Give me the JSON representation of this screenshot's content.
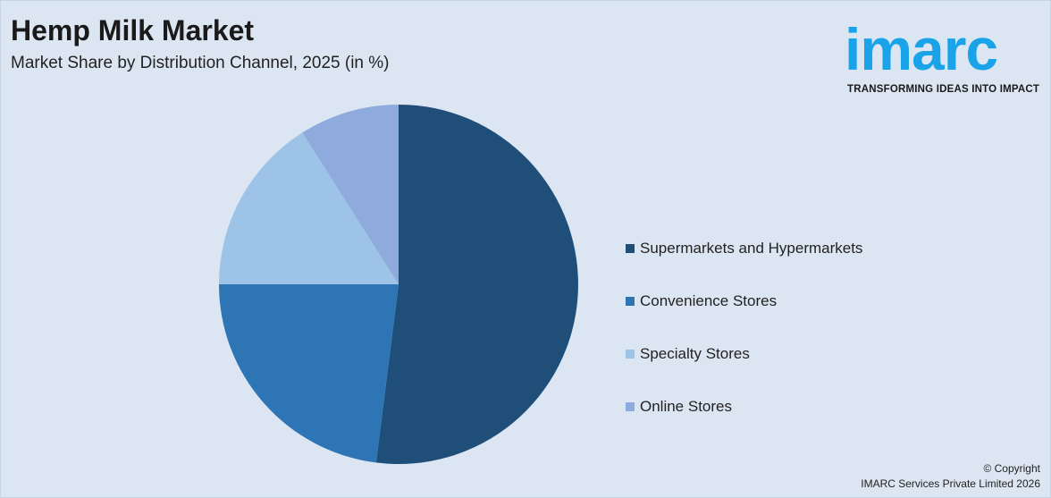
{
  "header": {
    "title": "Hemp Milk Market",
    "subtitle": "Market Share by Distribution Channel, 2025 (in %)"
  },
  "logo": {
    "wordmark": "imarc",
    "tagline": "TRANSFORMING IDEAS INTO IMPACT",
    "color": "#1aa3e8"
  },
  "footer": {
    "copyright_line1": "© Copyright",
    "copyright_line2": "IMARC Services Private Limited 2026"
  },
  "chart_data": {
    "type": "pie",
    "title": "Hemp Milk Market",
    "subtitle": "Market Share by Distribution Channel, 2025 (in %)",
    "categories": [
      "Supermarkets and Hypermarkets",
      "Convenience Stores",
      "Specialty Stores",
      "Online Stores"
    ],
    "values": [
      52,
      23,
      16,
      9
    ],
    "colors": [
      "#1f4e79",
      "#2e75b6",
      "#9dc3e6",
      "#8faadc"
    ],
    "start_angle_deg": 0,
    "direction": "clockwise",
    "legend_position": "right"
  }
}
